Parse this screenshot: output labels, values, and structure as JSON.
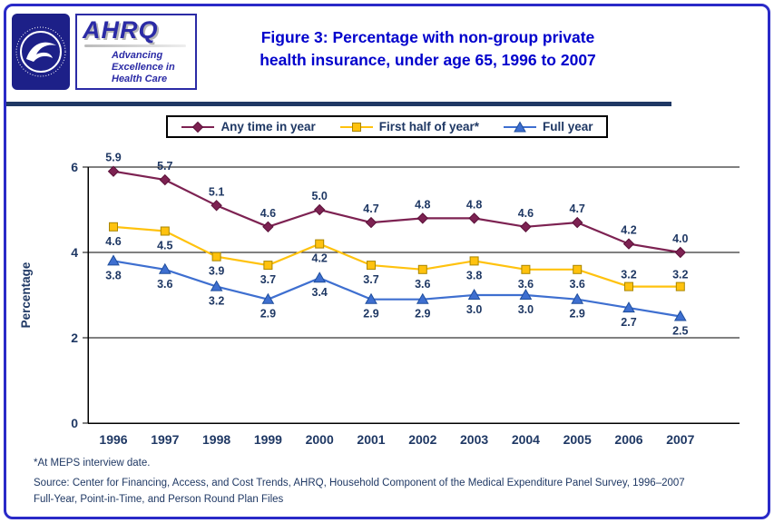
{
  "header": {
    "title_line1": "Figure 3: Percentage with non-group private",
    "title_line2": "health insurance, under age 65, 1996 to 2007",
    "ahrq": {
      "acronym": "AHRQ",
      "tagline_line1": "Advancing",
      "tagline_line2": "Excellence in",
      "tagline_line3": "Health Care"
    }
  },
  "chart_data": {
    "type": "line",
    "title": "Figure 3: Percentage with non-group private health insurance, under age 65, 1996 to 2007",
    "categories": [
      "1996",
      "1997",
      "1998",
      "1999",
      "2000",
      "2001",
      "2002",
      "2003",
      "2004",
      "2005",
      "2006",
      "2007"
    ],
    "series": [
      {
        "name": "Any time in year",
        "marker": "diamond",
        "color": "#7D2252",
        "edge": "#5A1038",
        "label_dy": -11,
        "values": [
          5.9,
          5.7,
          5.1,
          4.6,
          5.0,
          4.7,
          4.8,
          4.8,
          4.6,
          4.7,
          4.2,
          4.0
        ]
      },
      {
        "name": "First half of year*",
        "marker": "square",
        "color": "#FFC20E",
        "edge": "#A98600",
        "label_dy": 20,
        "label_dy_overrides": {
          "10": -9,
          "11": -9
        },
        "values": [
          4.6,
          4.5,
          3.9,
          3.7,
          4.2,
          3.7,
          3.6,
          3.8,
          3.6,
          3.6,
          3.2,
          3.2
        ]
      },
      {
        "name": "Full year",
        "marker": "triangle",
        "color": "#3E6FD0",
        "edge": "#1F4E9C",
        "label_dy": 20,
        "values": [
          3.8,
          3.6,
          3.2,
          2.9,
          3.4,
          2.9,
          2.9,
          3.0,
          3.0,
          2.9,
          2.7,
          2.5
        ]
      }
    ],
    "ylabel": "Percentage",
    "ylim": [
      0,
      6
    ],
    "yticks": [
      0,
      2,
      4,
      6
    ],
    "grid": "horizontal",
    "legend_position": "top",
    "text_color": "#1F3864"
  },
  "footnotes": {
    "note": "*At MEPS interview date.",
    "source_line1": "Source: Center for Financing, Access, and Cost Trends, AHRQ, Household Component of the Medical Expenditure Panel Survey, 1996–2007",
    "source_line2": "Full-Year, Point-in-Time, and Person Round Plan Files"
  },
  "colors": {
    "title_blue": "#0000CC",
    "accent_navy": "#1F3864",
    "border_blue": "#2A2AC8",
    "divider_navy": "#1F3864",
    "legend_border": "#000000",
    "ahrq_blue": "#2B2BA6",
    "hhs_navy": "#1D2088"
  }
}
